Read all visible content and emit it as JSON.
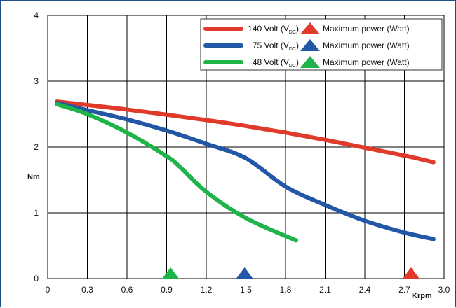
{
  "chart_data": {
    "type": "line",
    "xlabel": "Krpm",
    "ylabel": "Nm",
    "xlim": [
      0,
      3.0
    ],
    "ylim": [
      0,
      4
    ],
    "x_ticks": [
      "0",
      "0.3",
      "0.6",
      "0.9",
      "1.2",
      "1.5",
      "1.8",
      "2.1",
      "2.4",
      "2.7",
      "3.0"
    ],
    "y_ticks": [
      "0",
      "1",
      "2",
      "3",
      "4"
    ],
    "grid": true,
    "legend_position": "top-right",
    "series": [
      {
        "name": "140 Volt (V",
        "subscript": "DC",
        "suffix": ")",
        "color": "#e03a2b",
        "x": [
          0.07,
          0.6,
          1.2,
          1.5,
          1.8,
          2.1,
          2.4,
          2.7,
          2.92
        ],
        "y": [
          2.69,
          2.57,
          2.41,
          2.32,
          2.22,
          2.11,
          1.99,
          1.87,
          1.77
        ],
        "max_power_marker_x": 2.75,
        "marker_label": "Maximum power (Watt)"
      },
      {
        "name": "75 Volt (V",
        "subscript": "DC",
        "suffix": ")",
        "color": "#2257a7",
        "x": [
          0.07,
          0.3,
          0.6,
          0.9,
          1.2,
          1.5,
          1.8,
          2.1,
          2.4,
          2.7,
          2.92
        ],
        "y": [
          2.67,
          2.56,
          2.42,
          2.25,
          2.05,
          1.83,
          1.4,
          1.12,
          0.88,
          0.7,
          0.6
        ],
        "max_power_marker_x": 1.49,
        "marker_label": "Maximum power (Watt)"
      },
      {
        "name": "48 Volt (V",
        "subscript": "DC",
        "suffix": ")",
        "color": "#1fb44a",
        "x": [
          0.07,
          0.3,
          0.6,
          0.9,
          1.0,
          1.2,
          1.5,
          1.88
        ],
        "y": [
          2.65,
          2.5,
          2.22,
          1.86,
          1.7,
          1.32,
          0.92,
          0.58
        ],
        "max_power_marker_x": 0.93,
        "marker_label": "Maximum power (Watt)"
      }
    ]
  }
}
